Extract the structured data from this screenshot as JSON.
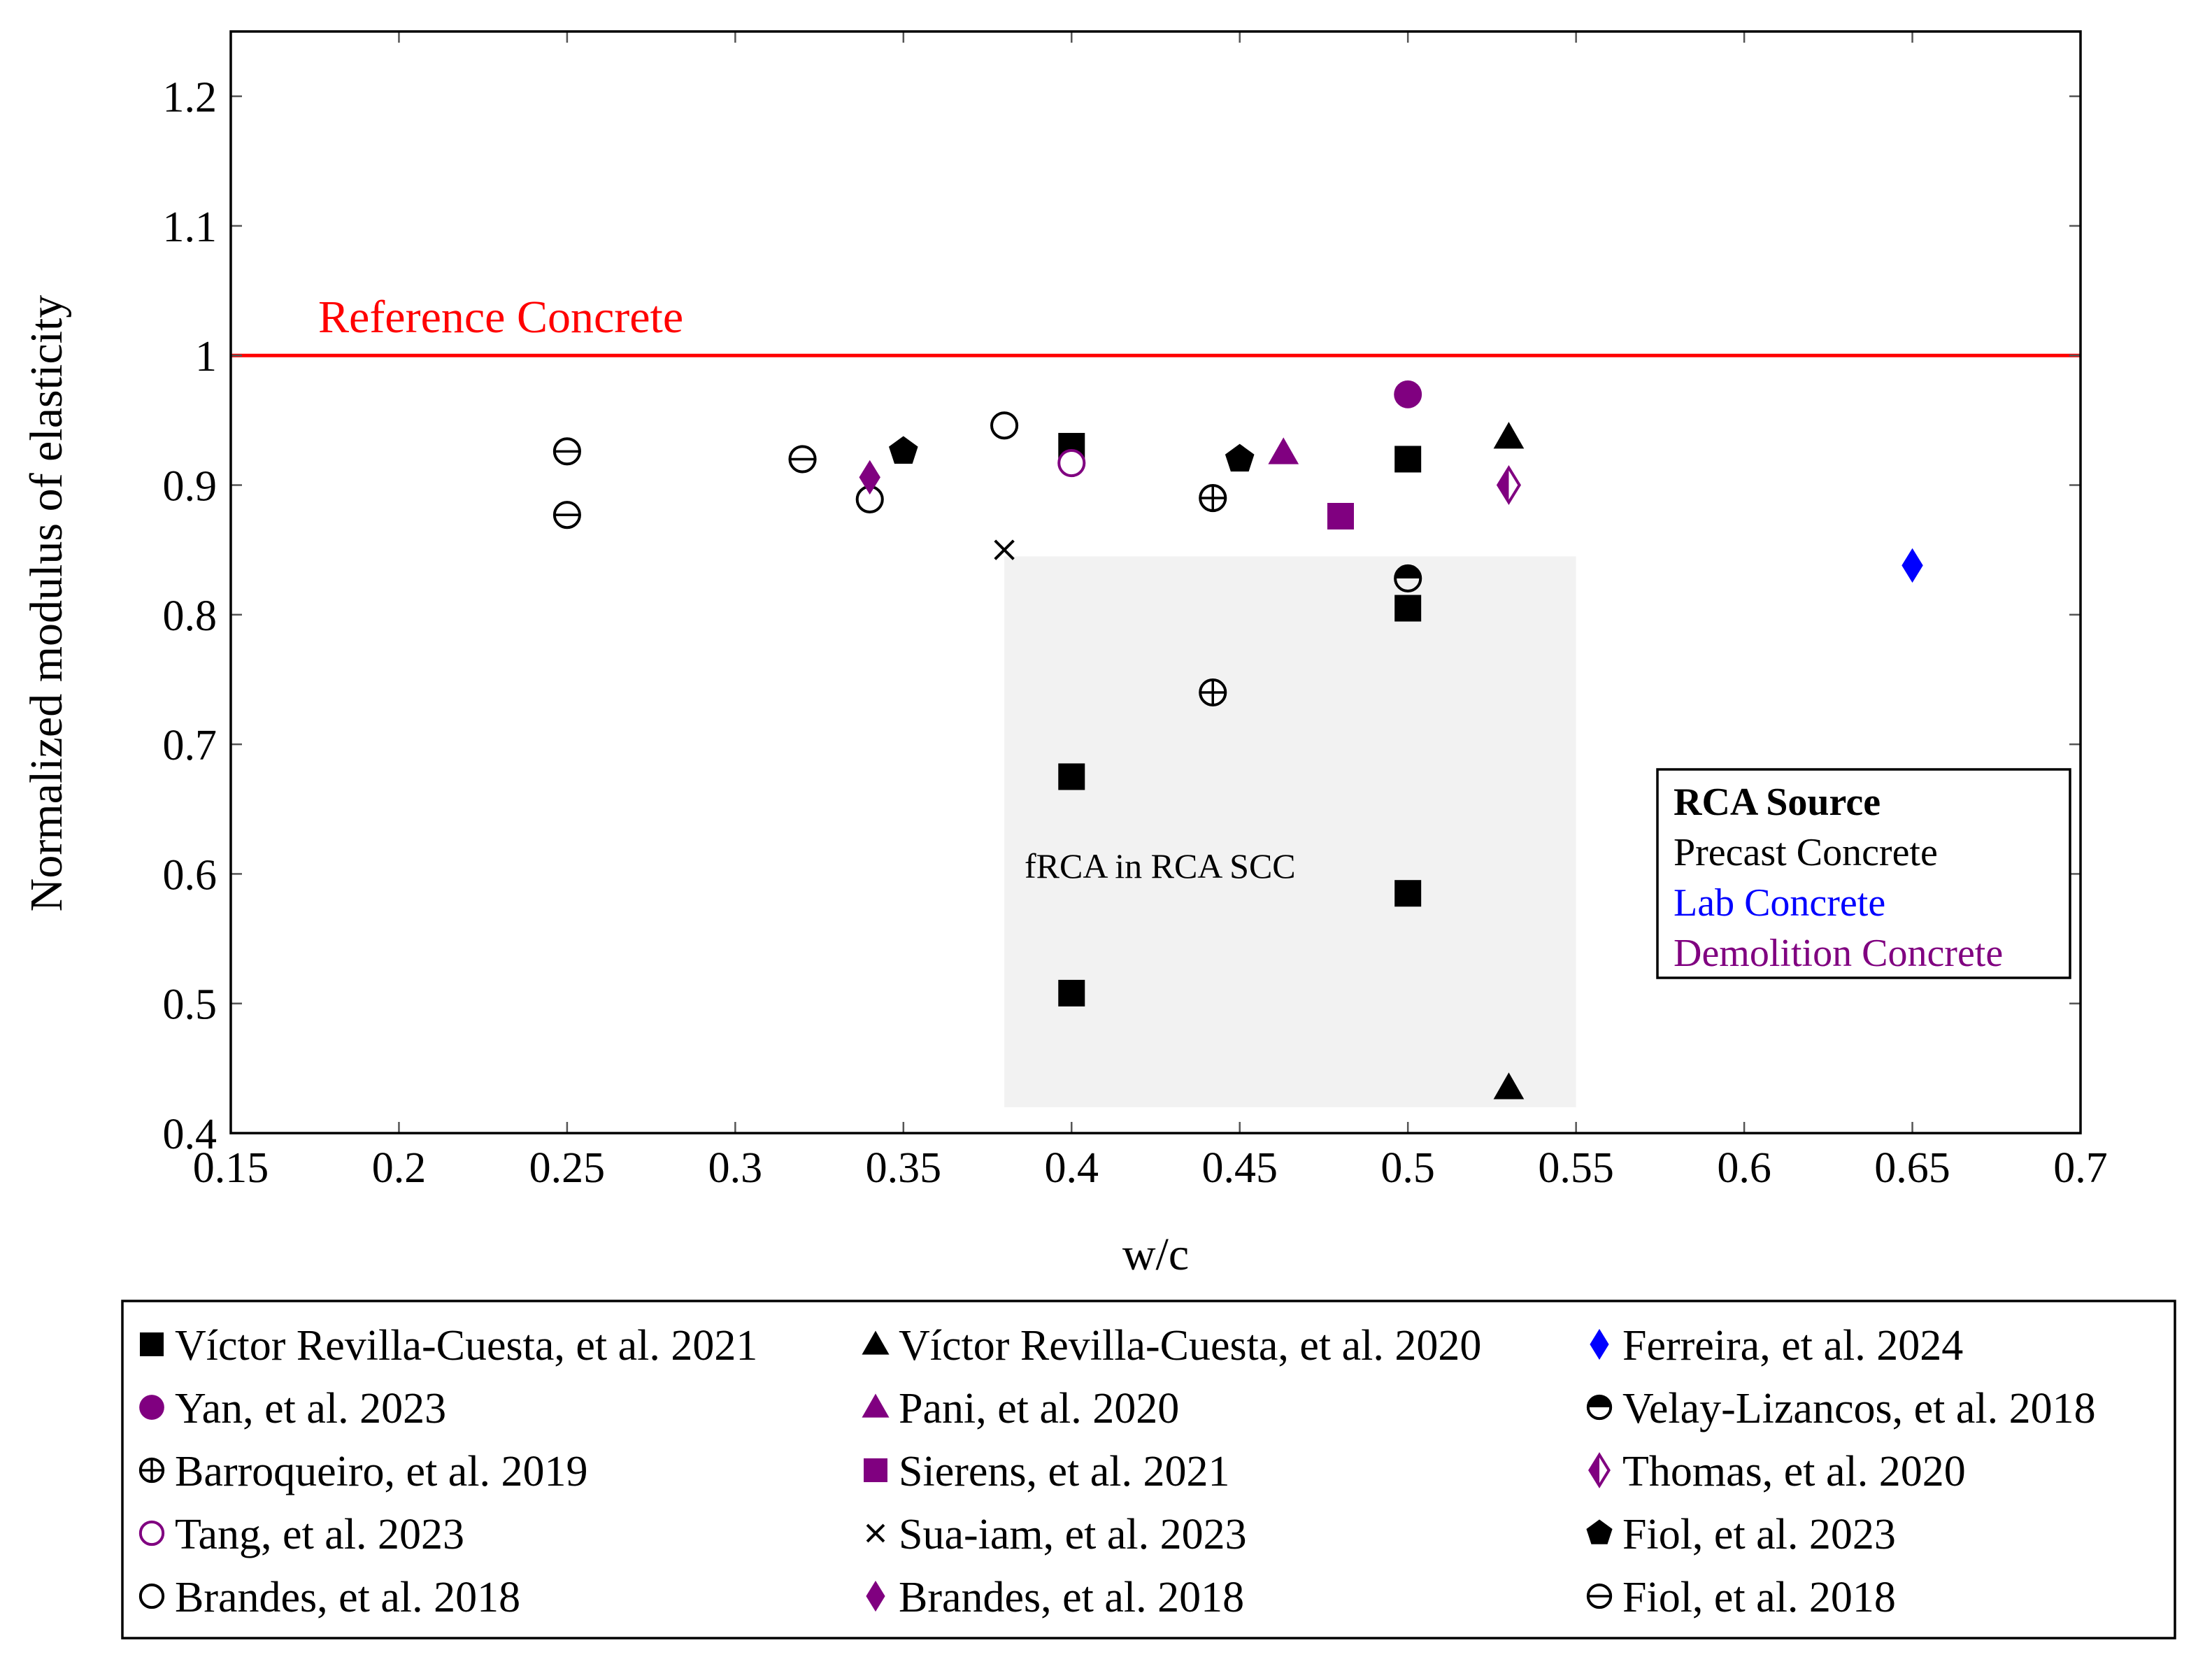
{
  "chart_data": {
    "type": "scatter",
    "title": "",
    "xlabel": "w/c",
    "ylabel": "Normalized modulus of elasticity",
    "xlim": [
      0.15,
      0.7
    ],
    "ylim": [
      0.4,
      1.25
    ],
    "x_ticks": [
      0.15,
      0.2,
      0.25,
      0.3,
      0.35,
      0.4,
      0.45,
      0.5,
      0.55,
      0.6,
      0.65,
      0.7
    ],
    "x_tick_labels": [
      "0.15",
      "0.2",
      "0.25",
      "0.3",
      "0.35",
      "0.4",
      "0.45",
      "0.5",
      "0.55",
      "0.6",
      "0.65",
      "0.7"
    ],
    "y_ticks": [
      0.4,
      0.5,
      0.6,
      0.7,
      0.8,
      0.9,
      1.0,
      1.1,
      1.2
    ],
    "y_tick_labels": [
      "0.4",
      "0.5",
      "0.6",
      "0.7",
      "0.8",
      "0.9",
      "1",
      "1.1",
      "1.2"
    ],
    "grid": false,
    "reference_line": {
      "y": 1.0,
      "label": "Reference Concrete",
      "color": "#ff0000"
    },
    "shaded_region": {
      "x": [
        0.38,
        0.55
      ],
      "y": [
        0.42,
        0.845
      ],
      "label": "fRCA in RCA SCC",
      "color": "#f2f2f2"
    },
    "source_legend": {
      "title": "RCA Source",
      "entries": [
        {
          "label": "Precast Concrete",
          "color": "#000000"
        },
        {
          "label": "Lab Concrete",
          "color": "#0000ff"
        },
        {
          "label": "Demolition Concrete",
          "color": "#800080"
        }
      ]
    },
    "series": [
      {
        "name": "Víctor Revilla-Cuesta, et al. 2021",
        "marker": "square",
        "color": "#000000",
        "points": [
          [
            0.4,
            0.93
          ],
          [
            0.4,
            0.675
          ],
          [
            0.4,
            0.508
          ],
          [
            0.5,
            0.92
          ],
          [
            0.5,
            0.805
          ],
          [
            0.5,
            0.585
          ]
        ]
      },
      {
        "name": "Víctor Revilla-Cuesta, et al. 2020",
        "marker": "triangle",
        "color": "#000000",
        "points": [
          [
            0.53,
            0.937
          ],
          [
            0.53,
            0.435
          ]
        ]
      },
      {
        "name": "Ferreira, et al. 2024",
        "marker": "diamond",
        "color": "#0000ff",
        "points": [
          [
            0.65,
            0.838
          ]
        ]
      },
      {
        "name": "Yan, et al. 2023",
        "marker": "circle",
        "color": "#800080",
        "points": [
          [
            0.5,
            0.97
          ]
        ]
      },
      {
        "name": "Pani, et al. 2020",
        "marker": "triangle",
        "color": "#800080",
        "points": [
          [
            0.463,
            0.925
          ]
        ]
      },
      {
        "name": "Velay-Lizancos, et al. 2018",
        "marker": "halfcircle",
        "color": "#000000",
        "points": [
          [
            0.5,
            0.828
          ]
        ]
      },
      {
        "name": "Barroqueiro, et al. 2019",
        "marker": "oplus",
        "color": "#000000",
        "points": [
          [
            0.442,
            0.89
          ],
          [
            0.442,
            0.74
          ]
        ]
      },
      {
        "name": "Sierens, et al. 2021",
        "marker": "square",
        "color": "#800080",
        "points": [
          [
            0.48,
            0.876
          ]
        ]
      },
      {
        "name": "Thomas, et al. 2020",
        "marker": "halfdiamond",
        "color": "#800080",
        "points": [
          [
            0.53,
            0.9
          ]
        ]
      },
      {
        "name": "Tang, et al. 2023",
        "marker": "ocircle",
        "color": "#800080",
        "points": [
          [
            0.4,
            0.917
          ]
        ]
      },
      {
        "name": "Sua-iam, et al. 2023",
        "marker": "x",
        "color": "#000000",
        "points": [
          [
            0.38,
            0.85
          ]
        ]
      },
      {
        "name": "Fiol, et al. 2023",
        "marker": "pentagon",
        "color": "#000000",
        "points": [
          [
            0.35,
            0.926
          ],
          [
            0.45,
            0.92
          ]
        ]
      },
      {
        "name": "Brandes, et al. 2018",
        "marker": "ocircle",
        "color": "#000000",
        "points": [
          [
            0.34,
            0.889
          ],
          [
            0.38,
            0.946
          ]
        ]
      },
      {
        "name": "Brandes, et al. 2018",
        "marker": "diamond",
        "color": "#800080",
        "points": [
          [
            0.34,
            0.906
          ]
        ]
      },
      {
        "name": "Fiol, et al. 2018",
        "marker": "ominus",
        "color": "#000000",
        "points": [
          [
            0.25,
            0.926
          ],
          [
            0.25,
            0.877
          ],
          [
            0.32,
            0.92
          ]
        ]
      }
    ]
  }
}
